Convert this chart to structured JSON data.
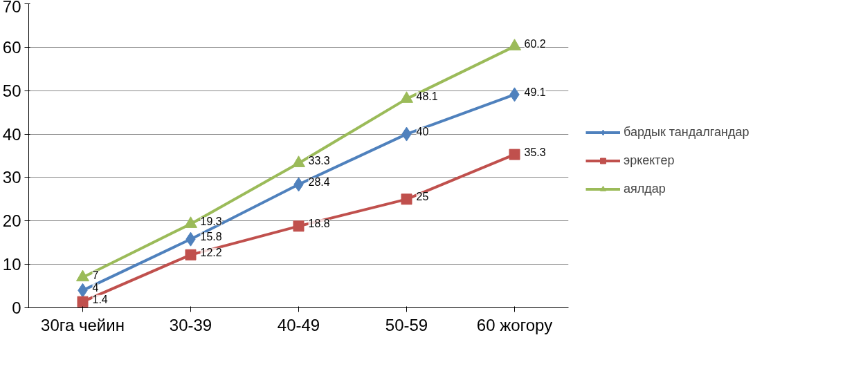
{
  "chart_data": {
    "type": "line",
    "categories": [
      "30га чейин",
      "30-39",
      "40-49",
      "50-59",
      "60 жогору"
    ],
    "series": [
      {
        "name": "бардык тандалгандар",
        "color": "#4f81bd",
        "marker": "diamond",
        "values": [
          4,
          15.8,
          28.4,
          40,
          49.1
        ]
      },
      {
        "name": "эркектер",
        "color": "#c0504d",
        "marker": "square",
        "values": [
          1.4,
          12.2,
          18.8,
          25,
          35.3
        ]
      },
      {
        "name": "аялдар",
        "color": "#9bbb59",
        "marker": "triangle",
        "values": [
          7,
          19.3,
          33.3,
          48.1,
          60.2
        ]
      }
    ],
    "ylim": [
      0,
      70
    ],
    "yticks": [
      0,
      10,
      20,
      30,
      40,
      50,
      60,
      70
    ],
    "grid": "y",
    "legend": "right",
    "data_labels": true,
    "line_style": "solid"
  }
}
